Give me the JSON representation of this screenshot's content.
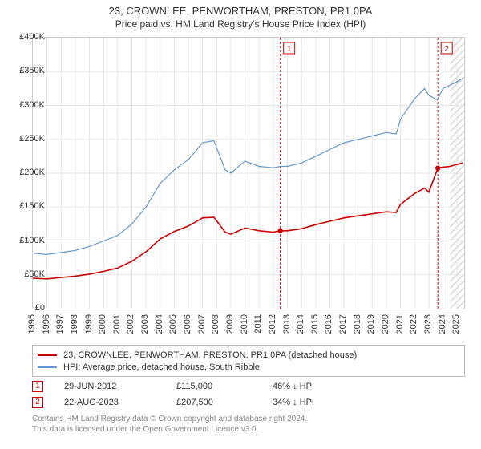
{
  "titles": {
    "main": "23, CROWNLEE, PENWORTHAM, PRESTON, PR1 0PA",
    "sub": "Price paid vs. HM Land Registry's House Price Index (HPI)"
  },
  "chart": {
    "type": "line",
    "background_color": "#ffffff",
    "grid_color": "#e6e6e6",
    "border_color": "#cccccc",
    "forecast_hatch_color": "#e0e0e0",
    "x": {
      "min": 1995,
      "max": 2025.5,
      "ticks": [
        1995,
        1996,
        1997,
        1998,
        1999,
        2000,
        2001,
        2002,
        2003,
        2004,
        2005,
        2006,
        2007,
        2008,
        2009,
        2010,
        2011,
        2012,
        2013,
        2014,
        2015,
        2016,
        2017,
        2018,
        2019,
        2020,
        2021,
        2022,
        2023,
        2024,
        2025
      ]
    },
    "y": {
      "min": 0,
      "max": 400000,
      "step": 50000,
      "tick_labels": [
        "£0",
        "£50K",
        "£100K",
        "£150K",
        "£200K",
        "£250K",
        "£300K",
        "£350K",
        "£400K"
      ]
    },
    "vlines": [
      {
        "x": 2012.5,
        "label": "1",
        "color": "#cc0000"
      },
      {
        "x": 2023.64,
        "label": "2",
        "color": "#cc0000"
      }
    ],
    "forecast_start_x": 2024.5,
    "series": [
      {
        "name": "hpi",
        "label": "HPI: Average price, detached house, South Ribble",
        "color": "#6699cc",
        "line_width": 1.2,
        "points": [
          [
            1995,
            82000
          ],
          [
            1996,
            80000
          ],
          [
            1997,
            83000
          ],
          [
            1998,
            86000
          ],
          [
            1999,
            92000
          ],
          [
            2000,
            100000
          ],
          [
            2001,
            108000
          ],
          [
            2002,
            125000
          ],
          [
            2003,
            150000
          ],
          [
            2004,
            185000
          ],
          [
            2005,
            205000
          ],
          [
            2006,
            220000
          ],
          [
            2007,
            245000
          ],
          [
            2007.8,
            248000
          ],
          [
            2008.6,
            205000
          ],
          [
            2009,
            200000
          ],
          [
            2010,
            218000
          ],
          [
            2011,
            210000
          ],
          [
            2012,
            208000
          ],
          [
            2012.5,
            210000
          ],
          [
            2013,
            210000
          ],
          [
            2014,
            215000
          ],
          [
            2015,
            225000
          ],
          [
            2016,
            235000
          ],
          [
            2017,
            245000
          ],
          [
            2018,
            250000
          ],
          [
            2019,
            255000
          ],
          [
            2020,
            260000
          ],
          [
            2020.7,
            258000
          ],
          [
            2021,
            280000
          ],
          [
            2022,
            310000
          ],
          [
            2022.7,
            325000
          ],
          [
            2023,
            315000
          ],
          [
            2023.6,
            308000
          ],
          [
            2024,
            325000
          ],
          [
            2024.5,
            330000
          ],
          [
            2025,
            335000
          ],
          [
            2025.4,
            340000
          ]
        ]
      },
      {
        "name": "price_paid",
        "label": "23, CROWNLEE, PENWORTHAM, PRESTON, PR1 0PA (detached house)",
        "color": "#cc0000",
        "line_width": 1.6,
        "markers": [
          {
            "x": 2012.5,
            "y": 115000
          },
          {
            "x": 2023.64,
            "y": 207500
          }
        ],
        "marker_radius": 3.2,
        "points": [
          [
            1995,
            45000
          ],
          [
            1996,
            44000
          ],
          [
            1997,
            46000
          ],
          [
            1998,
            48000
          ],
          [
            1999,
            51000
          ],
          [
            2000,
            55000
          ],
          [
            2001,
            60000
          ],
          [
            2002,
            70000
          ],
          [
            2003,
            84000
          ],
          [
            2004,
            103000
          ],
          [
            2005,
            114000
          ],
          [
            2006,
            122000
          ],
          [
            2007,
            134000
          ],
          [
            2007.8,
            135000
          ],
          [
            2008.6,
            113000
          ],
          [
            2009,
            110000
          ],
          [
            2010,
            119000
          ],
          [
            2011,
            115000
          ],
          [
            2012,
            113000
          ],
          [
            2012.5,
            115000
          ],
          [
            2013,
            115000
          ],
          [
            2014,
            118000
          ],
          [
            2015,
            124000
          ],
          [
            2016,
            129000
          ],
          [
            2017,
            134000
          ],
          [
            2018,
            137000
          ],
          [
            2019,
            140000
          ],
          [
            2020,
            143000
          ],
          [
            2020.7,
            142000
          ],
          [
            2021,
            154000
          ],
          [
            2022,
            170000
          ],
          [
            2022.7,
            178000
          ],
          [
            2023,
            172000
          ],
          [
            2023.64,
            207500
          ],
          [
            2024,
            209000
          ],
          [
            2024.5,
            210000
          ],
          [
            2025,
            213000
          ],
          [
            2025.4,
            215000
          ]
        ]
      }
    ]
  },
  "legend": {
    "border_color": "#bbbbbb",
    "items": [
      {
        "color": "#cc0000",
        "label": "23, CROWNLEE, PENWORTHAM, PRESTON, PR1 0PA (detached house)"
      },
      {
        "color": "#6699cc",
        "label": "HPI: Average price, detached house, South Ribble"
      }
    ]
  },
  "sales": [
    {
      "marker": "1",
      "date": "29-JUN-2012",
      "price": "£115,000",
      "delta": "46% ↓ HPI"
    },
    {
      "marker": "2",
      "date": "22-AUG-2023",
      "price": "£207,500",
      "delta": "34% ↓ HPI"
    }
  ],
  "footer": {
    "line1": "Contains HM Land Registry data © Crown copyright and database right 2024.",
    "line2": "This data is licensed under the Open Government Licence v3.0."
  },
  "typography": {
    "title_fontsize": 13,
    "subtitle_fontsize": 12,
    "tick_fontsize": 11,
    "legend_fontsize": 11,
    "footer_fontsize": 10,
    "footer_color": "#888888",
    "text_color": "#333333"
  }
}
